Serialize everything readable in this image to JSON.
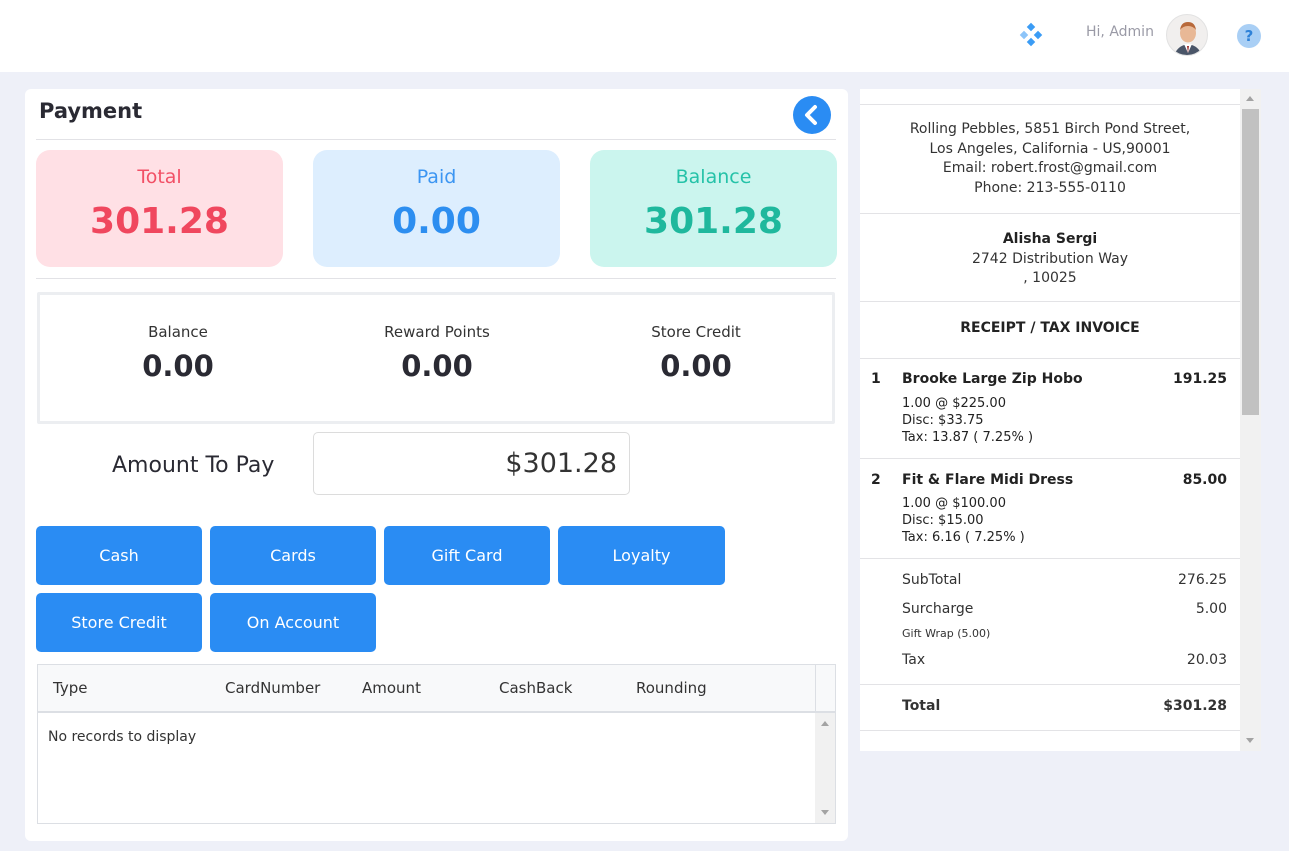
{
  "header": {
    "greeting": "Hi, Admin",
    "help_label": "?",
    "colors": {
      "accent": "#2a8cf3",
      "apps_icon": "#3b9cf5"
    }
  },
  "payment": {
    "title": "Payment",
    "summary": [
      {
        "label": "Total",
        "value": "301.28",
        "bg": "#ffe0e5",
        "label_color": "#f25066",
        "value_color": "#f0475e"
      },
      {
        "label": "Paid",
        "value": "0.00",
        "bg": "#ddeefe",
        "label_color": "#3b95f2",
        "value_color": "#2d8ef0"
      },
      {
        "label": "Balance",
        "value": "301.28",
        "bg": "#cbf5ee",
        "label_color": "#25c2a8",
        "value_color": "#1fb89d"
      }
    ],
    "account": [
      {
        "label": "Balance",
        "value": "0.00"
      },
      {
        "label": "Reward Points",
        "value": "0.00"
      },
      {
        "label": "Store Credit",
        "value": "0.00"
      }
    ],
    "amount_to_pay_label": "Amount To Pay",
    "amount_to_pay_value": "$301.28",
    "buttons": [
      "Cash",
      "Cards",
      "Gift Card",
      "Loyalty",
      "Store Credit",
      "On Account"
    ],
    "grid": {
      "columns": [
        "Type",
        "CardNumber",
        "Amount",
        "CashBack",
        "Rounding"
      ],
      "empty_message": "No records to display"
    }
  },
  "receipt": {
    "store": {
      "address1": "Rolling Pebbles, 5851 Birch Pond Street,",
      "address2": "Los Angeles, California - US,90001",
      "email": "Email: robert.frost@gmail.com",
      "phone": "Phone: 213-555-0110"
    },
    "customer": {
      "name": "Alisha Sergi",
      "address1": "2742 Distribution Way",
      "address2": ", 10025"
    },
    "heading": "RECEIPT / TAX INVOICE",
    "items": [
      {
        "no": "1",
        "name": "Brooke Large Zip Hobo",
        "total": "191.25",
        "qty_price": "1.00 @ $225.00",
        "disc": "Disc: $33.75",
        "tax": "Tax: 13.87 ( 7.25% )"
      },
      {
        "no": "2",
        "name": "Fit & Flare Midi Dress",
        "total": "85.00",
        "qty_price": "1.00 @ $100.00",
        "disc": "Disc: $15.00",
        "tax": "Tax: 6.16 ( 7.25% )"
      }
    ],
    "totals": {
      "subtotal_label": "SubTotal",
      "subtotal": "276.25",
      "surcharge_label": "Surcharge",
      "surcharge": "5.00",
      "surcharge_note": "Gift Wrap (5.00)",
      "tax_label": "Tax",
      "tax": "20.03",
      "total_label": "Total",
      "total": "$301.28"
    }
  }
}
